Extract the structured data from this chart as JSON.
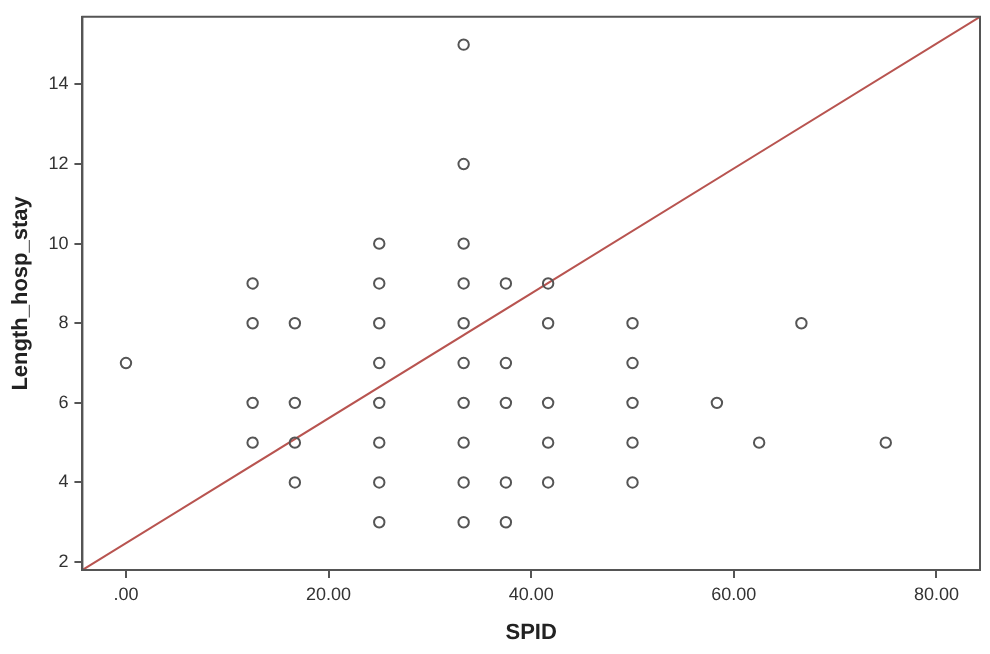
{
  "chart_data": {
    "type": "scatter",
    "xlabel": "SPID",
    "ylabel": "Length_hosp_stay",
    "xlim": [
      -4.3,
      84.3
    ],
    "ylim": [
      1.8,
      15.7
    ],
    "xticks": [
      {
        "value": 0,
        "label": ".00"
      },
      {
        "value": 20,
        "label": "20.00"
      },
      {
        "value": 40,
        "label": "40.00"
      },
      {
        "value": 60,
        "label": "60.00"
      },
      {
        "value": 80,
        "label": "80.00"
      }
    ],
    "yticks": [
      2,
      4,
      6,
      8,
      10,
      12,
      14
    ],
    "grid": false,
    "series": [
      {
        "color": "#555555",
        "marker": "circle",
        "x": [
          0,
          12.5,
          12.5,
          12.5,
          12.5,
          16.67,
          16.67,
          16.67,
          16.67,
          25,
          25,
          25,
          25,
          25,
          25,
          25,
          25,
          33.33,
          33.33,
          33.33,
          33.33,
          33.33,
          33.33,
          33.33,
          33.33,
          33.33,
          33.33,
          37.5,
          37.5,
          37.5,
          37.5,
          37.5,
          41.67,
          41.67,
          41.67,
          41.67,
          41.67,
          50,
          50,
          50,
          50,
          50,
          58.33,
          62.5,
          66.67,
          75
        ],
        "values": [
          7,
          9,
          8,
          6,
          5,
          8,
          6,
          5,
          4,
          10,
          9,
          8,
          7,
          6,
          5,
          4,
          3,
          15,
          12,
          10,
          9,
          8,
          7,
          6,
          5,
          4,
          3,
          9,
          7,
          6,
          4,
          3,
          9,
          8,
          6,
          5,
          4,
          8,
          7,
          6,
          5,
          4,
          6,
          5,
          8,
          5
        ]
      },
      {
        "type": "line",
        "color": "#b85450",
        "marker": "none",
        "x": [
          -4.3,
          84.3
        ],
        "values": [
          1.8,
          15.7
        ]
      }
    ]
  }
}
